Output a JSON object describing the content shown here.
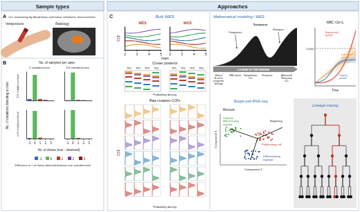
{
  "chart_data": [
    {
      "type": "bar",
      "categories": [
        null,
        null,
        null,
        null,
        null
      ],
      "values": [
        0.05,
        0.88,
        0.05,
        0.02,
        0.0
      ],
      "colors": [
        "#3b6fb6",
        "#5cb85c",
        "#c0392b",
        "#7d3c98",
        "#8b1a1a"
      ],
      "ylim": [
        0,
        1
      ],
      "tick_labels": false
    },
    {
      "type": "bar",
      "categories": [
        null,
        null,
        null,
        null,
        null
      ],
      "values": [
        0.01,
        0.96,
        0.02,
        0.01,
        0.0
      ],
      "colors": [
        "#3b6fb6",
        "#5cb85c",
        "#c0392b",
        "#7d3c98",
        "#8b1a1a"
      ],
      "ylim": [
        0,
        1
      ],
      "tick_labels": false
    },
    {
      "type": "bar",
      "categories": [
        "-1",
        "0",
        "1",
        "2",
        "3"
      ],
      "values": [
        0.02,
        0.95,
        0.03,
        0.0,
        0.0
      ],
      "colors": [
        "#3b6fb6",
        "#5cb85c",
        "#c0392b",
        "#7d3c98",
        "#8b1a1a"
      ],
      "ylim": [
        0,
        1
      ],
      "tick_labels": "x"
    },
    {
      "type": "bar",
      "categories": [
        "-1",
        "0",
        "1",
        "2",
        "3"
      ],
      "values": [
        0.0,
        0.98,
        0.02,
        0.0,
        0.0
      ],
      "colors": [
        "#3b6fb6",
        "#5cb85c",
        "#c0392b",
        "#7d3c98",
        "#8b1a1a"
      ],
      "ylim": [
        0,
        1
      ],
      "tick_labels": "x"
    }
  ],
  "figure": {
    "headers": {
      "sample_types": "Sample types",
      "approaches": "Approaches"
    },
    "panel_a": {
      "label": "A",
      "title": "CLL monitoring by blood draw and tumor volumetric measurement",
      "items": [
        "Venipuncture",
        "Radiology"
      ]
    },
    "panel_b": {
      "label": "B",
      "column_title": "No. of samples per case",
      "columns": [
        "2 samples/case",
        "3-6 samples/case"
      ],
      "rows": [
        "2-9 mutations/clone",
        "≥10 mutations/clone"
      ],
      "y_label": "No. of mutations detecting a clone",
      "x_label": "No. of clones (true - observed)",
      "legend_title": "Difference in # of clones detected between true and observed"
    },
    "panel_c": {
      "label": "C",
      "bulk": {
        "title": "Bulk WES",
        "plots": [
          "WES",
          "WGS"
        ],
        "x_label": "Years",
        "xlim": [
          2,
          5
        ],
        "xticks": [
          2,
          3,
          4,
          5
        ],
        "y_label": "CCF",
        "posterior_title": "Cluster posterior",
        "timepoints": [
          "TP1",
          "TP2",
          "TP3",
          "TP4"
        ],
        "density_label": "Probability density",
        "raw_title": "Raw mutation CCFs"
      },
      "modeling": {
        "title": "Mathematical modeling / WES",
        "events": [
          "Diagnosis",
          "Treatment",
          "Relapse"
        ],
        "course_label": "COURSE OF THE DISEASE",
        "stages": [
          "Mature B-cell or progenitor damage",
          "MBL phase",
          "Symptomatic CLL",
          "Response",
          "Advanced/ Refractory CLL"
        ],
        "y_label": "WBC ×10⁹/L",
        "threshold_label": "1,000",
        "x_label": "Time",
        "curves": [
          {
            "name": "Exponential growth",
            "color": "#d9443a"
          },
          {
            "name": "Indeterminate growth",
            "color": "#e8952f"
          },
          {
            "name": "Logistic growth",
            "color": "#3a6fb0"
          }
        ]
      },
      "scrna": {
        "title": "Single-cell RNA-seq",
        "method": "Monocle",
        "x_label": "Component 2",
        "y_label": "Component 1",
        "states": [
          {
            "name": "Beginning",
            "color": "#222222"
          },
          {
            "name": "Proliferating cell",
            "color": "#c0392b"
          },
          {
            "name": "Differentiating myeloid",
            "color": "#2c4fa0"
          },
          {
            "name": "Inhibited differentiating myeloid",
            "color": "#3a9a3a"
          }
        ]
      },
      "lineage": {
        "title": "Lineage tracing"
      }
    }
  }
}
